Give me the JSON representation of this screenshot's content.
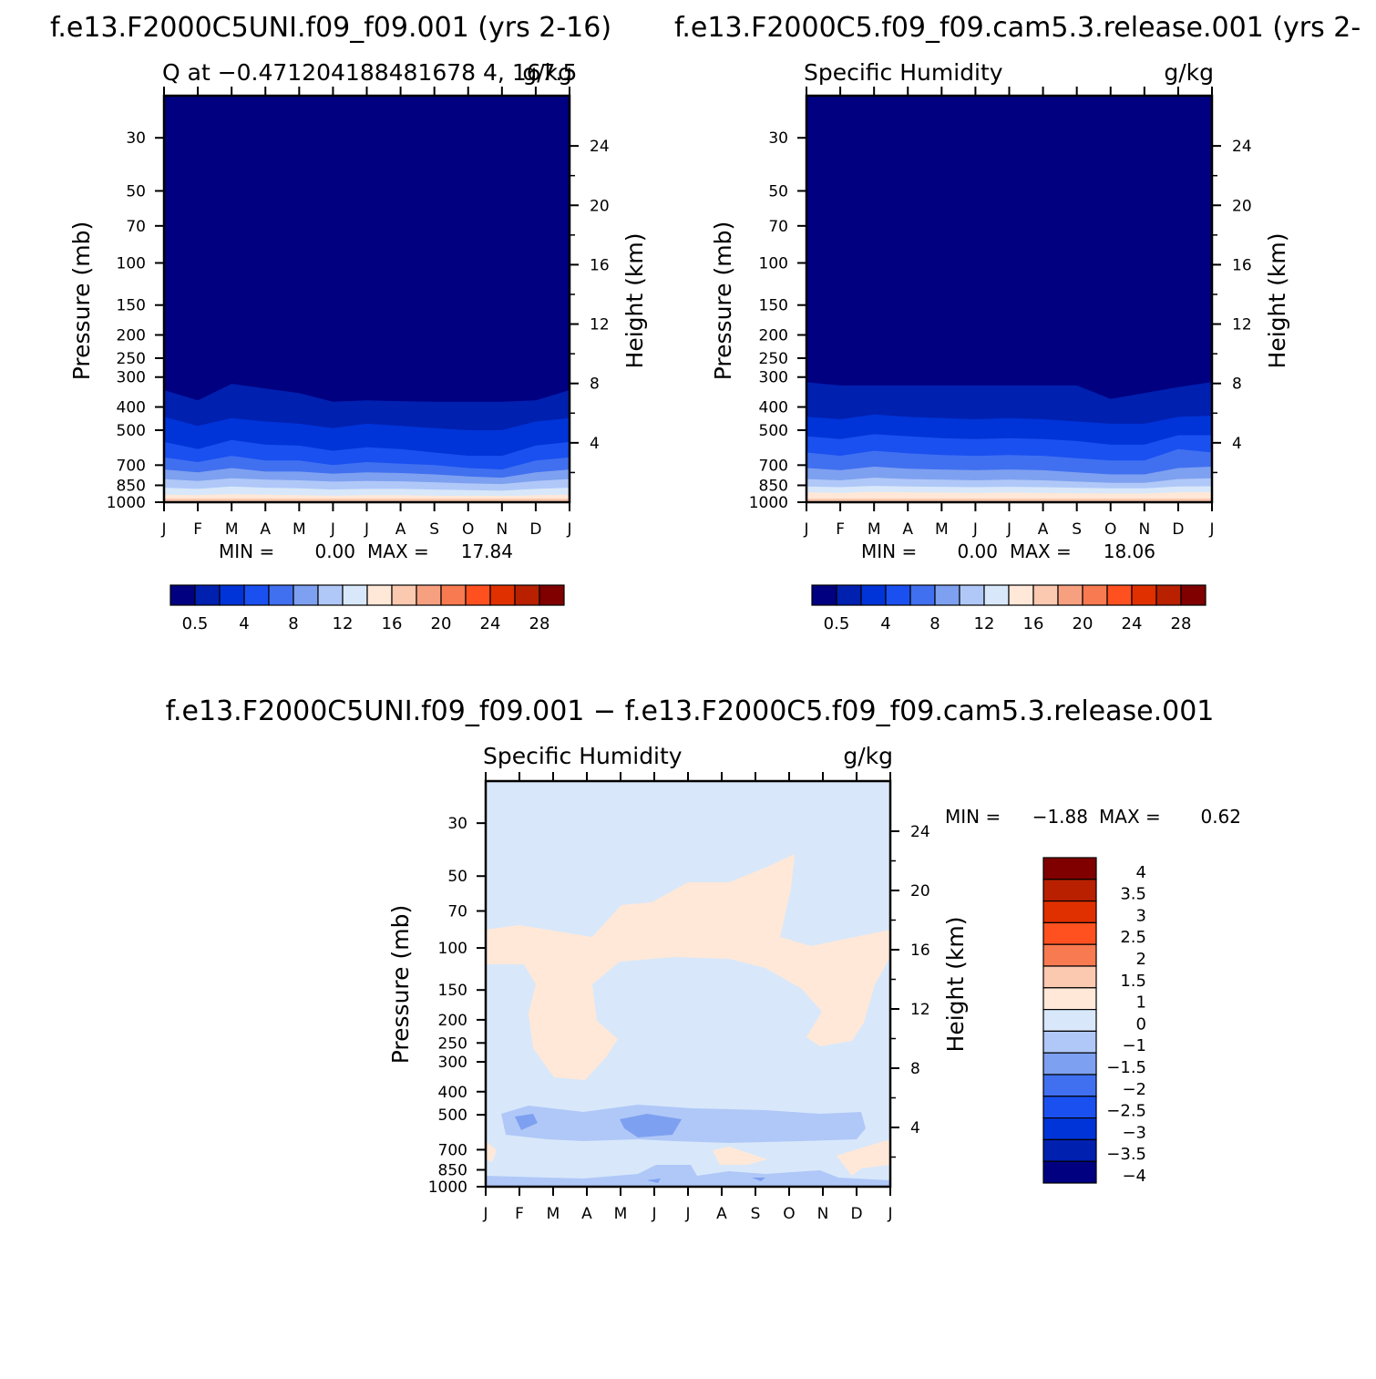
{
  "chart_data": [
    {
      "type": "heatmap",
      "header": "f.e13.F2000C5UNI.f09_f09.001  (yrs 2-16)",
      "title": "Q at −0.471204188481678 4, 167.5",
      "units": "g/kg",
      "xlabel": "",
      "ylabel": "Pressure (mb)",
      "ylabel_right": "Height (km)",
      "x_ticks": [
        "J",
        "F",
        "M",
        "A",
        "M",
        "J",
        "J",
        "A",
        "S",
        "O",
        "N",
        "D",
        "J"
      ],
      "y_ticks": [
        "30",
        "50",
        "70",
        "100",
        "150",
        "200",
        "250",
        "300",
        "400",
        "500",
        "700",
        "850",
        "1000"
      ],
      "y_ticks_right": [
        "24",
        "20",
        "16",
        "12",
        "8",
        "4"
      ],
      "ylim": [
        1000,
        20
      ],
      "y_scale": "log",
      "min_text": "MIN =",
      "min_value": "0.00",
      "max_text": "MAX =",
      "max_value": "17.84",
      "colorbar_labels": [
        "0.5",
        "4",
        "8",
        "12",
        "16",
        "20",
        "24",
        "28"
      ],
      "contour_boundaries_mb": [
        {
          "level": "0.5",
          "p": [
            340,
            375,
            320,
            335,
            350,
            380,
            375,
            378,
            380,
            380,
            380,
            375,
            340
          ]
        },
        {
          "level": "2",
          "p": [
            440,
            480,
            445,
            460,
            470,
            490,
            470,
            480,
            490,
            500,
            500,
            460,
            445
          ]
        },
        {
          "level": "4",
          "p": [
            560,
            600,
            550,
            575,
            580,
            610,
            590,
            600,
            620,
            640,
            640,
            580,
            560
          ]
        },
        {
          "level": "6",
          "p": [
            650,
            680,
            640,
            670,
            670,
            700,
            680,
            690,
            700,
            720,
            730,
            670,
            650
          ]
        },
        {
          "level": "8",
          "p": [
            730,
            750,
            720,
            745,
            745,
            760,
            750,
            755,
            765,
            780,
            790,
            750,
            730
          ]
        },
        {
          "level": "10",
          "p": [
            800,
            815,
            795,
            805,
            810,
            820,
            815,
            818,
            825,
            835,
            840,
            815,
            800
          ]
        },
        {
          "level": "12",
          "p": [
            870,
            880,
            860,
            870,
            875,
            885,
            880,
            880,
            885,
            890,
            895,
            880,
            870
          ]
        },
        {
          "level": "14",
          "p": [
            930,
            935,
            925,
            930,
            935,
            940,
            935,
            935,
            940,
            945,
            945,
            935,
            930
          ]
        }
      ]
    },
    {
      "type": "heatmap",
      "header": "f.e13.F2000C5.f09_f09.cam5.3.release.001  (yrs 2-",
      "title": "Specific Humidity",
      "units": "g/kg",
      "xlabel": "",
      "ylabel": "Pressure (mb)",
      "ylabel_right": "Height (km)",
      "x_ticks": [
        "J",
        "F",
        "M",
        "A",
        "M",
        "J",
        "J",
        "A",
        "S",
        "O",
        "N",
        "D",
        "J"
      ],
      "y_ticks": [
        "30",
        "50",
        "70",
        "100",
        "150",
        "200",
        "250",
        "300",
        "400",
        "500",
        "700",
        "850",
        "1000"
      ],
      "y_ticks_right": [
        "24",
        "20",
        "16",
        "12",
        "8",
        "4"
      ],
      "ylim": [
        1000,
        20
      ],
      "y_scale": "log",
      "min_text": "MIN =",
      "min_value": "0.00",
      "max_text": "MAX =",
      "max_value": "18.06",
      "colorbar_labels": [
        "0.5",
        "4",
        "8",
        "12",
        "16",
        "20",
        "24",
        "28"
      ],
      "contour_boundaries_mb": [
        {
          "level": "0.5",
          "p": [
            315,
            325,
            325,
            325,
            325,
            325,
            325,
            325,
            325,
            370,
            350,
            330,
            315
          ]
        },
        {
          "level": "2",
          "p": [
            440,
            450,
            430,
            440,
            445,
            450,
            445,
            450,
            460,
            470,
            470,
            440,
            435
          ]
        },
        {
          "level": "4",
          "p": [
            530,
            545,
            520,
            530,
            540,
            545,
            540,
            545,
            555,
            575,
            575,
            525,
            525
          ]
        },
        {
          "level": "6",
          "p": [
            620,
            640,
            610,
            625,
            635,
            640,
            635,
            640,
            655,
            670,
            670,
            600,
            620
          ]
        },
        {
          "level": "8",
          "p": [
            720,
            735,
            710,
            725,
            730,
            735,
            730,
            735,
            750,
            765,
            765,
            720,
            710
          ]
        },
        {
          "level": "10",
          "p": [
            800,
            810,
            790,
            800,
            805,
            810,
            805,
            810,
            820,
            830,
            830,
            800,
            795
          ]
        },
        {
          "level": "12",
          "p": [
            860,
            865,
            855,
            860,
            862,
            865,
            862,
            865,
            870,
            875,
            875,
            860,
            858
          ]
        },
        {
          "level": "14",
          "p": [
            910,
            915,
            905,
            910,
            912,
            915,
            912,
            915,
            918,
            920,
            920,
            910,
            908
          ]
        }
      ]
    },
    {
      "type": "heatmap",
      "header": "f.e13.F2000C5UNI.f09_f09.001 − f.e13.F2000C5.f09_f09.cam5.3.release.001",
      "title": "Specific Humidity",
      "units": "g/kg",
      "xlabel": "",
      "ylabel": "Pressure (mb)",
      "ylabel_right": "Height (km)",
      "x_ticks": [
        "J",
        "F",
        "M",
        "A",
        "M",
        "J",
        "J",
        "A",
        "S",
        "O",
        "N",
        "D",
        "J"
      ],
      "y_ticks": [
        "30",
        "50",
        "70",
        "100",
        "150",
        "200",
        "250",
        "300",
        "400",
        "500",
        "700",
        "850",
        "1000"
      ],
      "y_ticks_right": [
        "24",
        "20",
        "16",
        "12",
        "8",
        "4"
      ],
      "ylim": [
        1000,
        20
      ],
      "y_scale": "log",
      "min_text": "MIN =",
      "min_value": "−1.88",
      "max_text": "MAX =",
      "max_value": "0.62",
      "colorbar_labels": [
        "4",
        "3.5",
        "3",
        "2.5",
        "2",
        "1.5",
        "1",
        "0",
        "−1",
        "−1.5",
        "−2",
        "−2.5",
        "−3",
        "−3.5",
        "−4"
      ]
    }
  ],
  "colors": {
    "q_levels": [
      "#000080",
      "#0020b0",
      "#0034d8",
      "#1a50f0",
      "#4070f0",
      "#7ea0f0",
      "#b0c8f8",
      "#d8e8fa",
      "#ffe8d8",
      "#fbc8b0",
      "#f7a080",
      "#f77a50",
      "#ff5020",
      "#e03000",
      "#b82000",
      "#800000"
    ],
    "diff_levels_top_down": [
      "#800000",
      "#b82000",
      "#e03000",
      "#ff5020",
      "#f77a50",
      "#fbc8b0",
      "#ffe8d8",
      "#d8e8fa",
      "#b0c8f8",
      "#7ea0f0",
      "#4070f0",
      "#1a50f0",
      "#0034d8",
      "#0020b0",
      "#000080"
    ]
  }
}
